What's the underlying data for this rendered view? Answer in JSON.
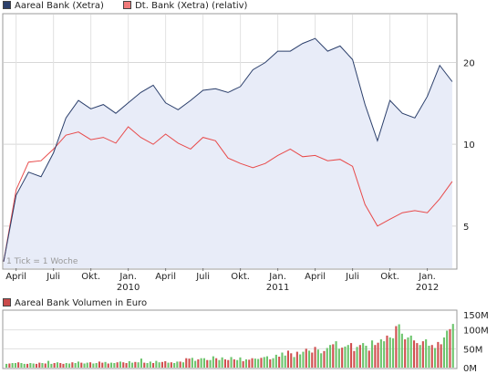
{
  "legend": [
    {
      "label": "Aareal Bank (Xetra)",
      "color": "#2b3f6b"
    },
    {
      "label": "Dt. Bank (Xetra) (relativ)",
      "color": "#e84a4a"
    }
  ],
  "volume_legend": {
    "label": "Aareal Bank Volumen in Euro",
    "color": "#c94a4a"
  },
  "note": "1 Tick = 1 Woche",
  "chart_data": [
    {
      "type": "line",
      "title": "",
      "y_scale": "log",
      "ylim": [
        3.5,
        30
      ],
      "y_ticks": [
        5,
        10,
        20
      ],
      "x_ticks": [
        "April",
        "Juli",
        "Okt.",
        "Jan.",
        "April",
        "Juli",
        "Okt.",
        "Jan.",
        "April",
        "Juli",
        "Okt.",
        "Jan."
      ],
      "x_year_labels": [
        "2010",
        "2011",
        "2012"
      ],
      "x_tick_dates": [
        "2009-04",
        "2009-07",
        "2009-10",
        "2010-01",
        "2010-04",
        "2010-07",
        "2010-10",
        "2011-01",
        "2011-04",
        "2011-07",
        "2011-10",
        "2012-01"
      ],
      "x": [
        "2009-03",
        "2009-04",
        "2009-05",
        "2009-06",
        "2009-07",
        "2009-08",
        "2009-09",
        "2009-10",
        "2009-11",
        "2009-12",
        "2010-01",
        "2010-02",
        "2010-03",
        "2010-04",
        "2010-05",
        "2010-06",
        "2010-07",
        "2010-08",
        "2010-09",
        "2010-10",
        "2010-11",
        "2010-12",
        "2011-01",
        "2011-02",
        "2011-03",
        "2011-04",
        "2011-05",
        "2011-06",
        "2011-07",
        "2011-08",
        "2011-09",
        "2011-10",
        "2011-11",
        "2011-12",
        "2012-01",
        "2012-02",
        "2012-03"
      ],
      "series": [
        {
          "name": "Aareal Bank (Xetra)",
          "color": "#2b3f6b",
          "values": [
            3.7,
            6.5,
            7.9,
            7.6,
            9.3,
            12.5,
            14.5,
            13.5,
            14.0,
            13.0,
            14.2,
            15.5,
            16.5,
            14.2,
            13.4,
            14.5,
            15.8,
            16.0,
            15.5,
            16.3,
            18.8,
            20.0,
            22.0,
            22.0,
            23.5,
            24.5,
            22.0,
            23.0,
            20.5,
            14.0,
            10.3,
            14.5,
            13.0,
            12.5,
            15.0,
            19.5,
            17.0
          ]
        },
        {
          "name": "Dt. Bank (Xetra) (relativ)",
          "color": "#e84a4a",
          "values": [
            3.7,
            6.8,
            8.6,
            8.7,
            9.6,
            10.8,
            11.1,
            10.4,
            10.6,
            10.1,
            11.6,
            10.6,
            10.0,
            10.9,
            10.1,
            9.6,
            10.6,
            10.3,
            8.9,
            8.5,
            8.2,
            8.5,
            9.1,
            9.6,
            9.0,
            9.1,
            8.7,
            8.8,
            8.3,
            6.0,
            5.0,
            5.3,
            5.6,
            5.7,
            5.6,
            6.3,
            7.3
          ]
        }
      ]
    },
    {
      "type": "bar",
      "title": "Aareal Bank Volumen in Euro",
      "ylim": [
        0,
        150
      ],
      "y_ticks": [
        "0M",
        "50M",
        "100M",
        "150M"
      ],
      "colors": {
        "up": "#6cc46c",
        "down": "#d05050"
      },
      "values": [
        10,
        11,
        12,
        12,
        14,
        12,
        10,
        10,
        12,
        11,
        10,
        13,
        12,
        11,
        18,
        10,
        12,
        14,
        12,
        10,
        12,
        11,
        14,
        12,
        16,
        13,
        11,
        13,
        14,
        11,
        12,
        16,
        13,
        15,
        11,
        13,
        12,
        14,
        16,
        14,
        12,
        17,
        13,
        15,
        14,
        24,
        13,
        12,
        16,
        12,
        18,
        14,
        15,
        17,
        13,
        14,
        12,
        16,
        16,
        14,
        25,
        24,
        26,
        18,
        22,
        25,
        25,
        20,
        20,
        30,
        25,
        20,
        27,
        22,
        20,
        28,
        22,
        20,
        27,
        17,
        22,
        21,
        25,
        24,
        23,
        26,
        28,
        30,
        22,
        25,
        34,
        29,
        40,
        32,
        45,
        38,
        28,
        42,
        35,
        42,
        50,
        45,
        40,
        55,
        48,
        38,
        44,
        52,
        60,
        62,
        70,
        50,
        53,
        56,
        60,
        65,
        44,
        55,
        60,
        65,
        58,
        45,
        72,
        60,
        66,
        75,
        70,
        85,
        80,
        78,
        110,
        115,
        90,
        75,
        80,
        85,
        72,
        65,
        60,
        70,
        75,
        58,
        60,
        52,
        68,
        62,
        80,
        98,
        102,
        116
      ]
    }
  ]
}
